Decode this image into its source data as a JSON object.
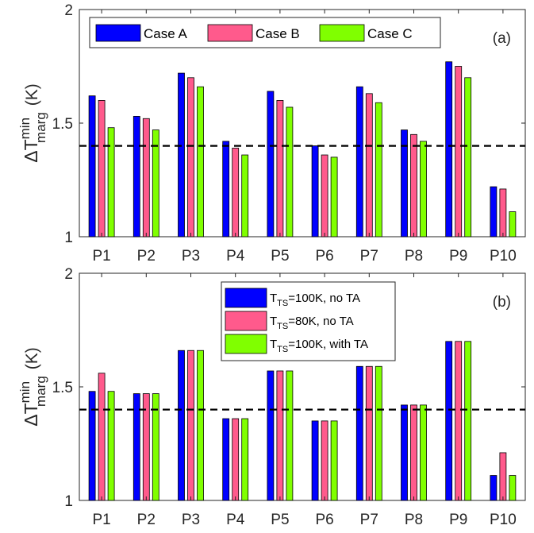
{
  "chart_data": [
    {
      "type": "bar",
      "panel_label": "(a)",
      "categories": [
        "P1",
        "P2",
        "P3",
        "P4",
        "P5",
        "P6",
        "P7",
        "P8",
        "P9",
        "P10"
      ],
      "series": [
        {
          "name": "Case A",
          "color": "#0000ff",
          "values": [
            1.62,
            1.53,
            1.72,
            1.42,
            1.64,
            1.4,
            1.66,
            1.47,
            1.77,
            1.22
          ]
        },
        {
          "name": "Case B",
          "color": "#ff5a8c",
          "values": [
            1.6,
            1.52,
            1.7,
            1.39,
            1.6,
            1.36,
            1.63,
            1.45,
            1.75,
            1.21
          ]
        },
        {
          "name": "Case C",
          "color": "#80ff00",
          "values": [
            1.48,
            1.47,
            1.66,
            1.36,
            1.57,
            1.35,
            1.59,
            1.42,
            1.7,
            1.11
          ]
        }
      ],
      "ylabel": {
        "base": "ΔT",
        "sup": "min",
        "sub": "marg",
        "unit": "(K)"
      },
      "ylim": [
        1,
        2
      ],
      "yticks": [
        "1",
        "1.5",
        "2"
      ],
      "threshold": 1.4,
      "legend_placement": "top-left, horizontal",
      "grid": false
    },
    {
      "type": "bar",
      "panel_label": "(b)",
      "categories": [
        "P1",
        "P2",
        "P3",
        "P4",
        "P5",
        "P6",
        "P7",
        "P8",
        "P9",
        "P10"
      ],
      "series": [
        {
          "name": "T_TS=100K, no TA",
          "label_main": "T",
          "label_sub": "TS",
          "label_rest": "=100K, no TA",
          "color": "#0000ff",
          "values": [
            1.48,
            1.47,
            1.66,
            1.36,
            1.57,
            1.35,
            1.59,
            1.42,
            1.7,
            1.11
          ]
        },
        {
          "name": "T_TS=80K, no TA",
          "label_main": "T",
          "label_sub": "TS",
          "label_rest": "=80K, no TA",
          "color": "#ff5a8c",
          "values": [
            1.56,
            1.47,
            1.66,
            1.36,
            1.57,
            1.35,
            1.59,
            1.42,
            1.7,
            1.21
          ]
        },
        {
          "name": "T_TS=100K, with TA",
          "label_main": "T",
          "label_sub": "TS",
          "label_rest": "=100K, with TA",
          "color": "#80ff00",
          "values": [
            1.48,
            1.47,
            1.66,
            1.36,
            1.57,
            1.35,
            1.59,
            1.42,
            1.7,
            1.11
          ]
        }
      ],
      "ylabel": {
        "base": "ΔT",
        "sup": "min",
        "sub": "marg",
        "unit": "(K)"
      },
      "ylim": [
        1,
        2
      ],
      "yticks": [
        "1",
        "1.5",
        "2"
      ],
      "threshold": 1.4,
      "legend_placement": "top-center, vertical",
      "grid": false
    }
  ]
}
